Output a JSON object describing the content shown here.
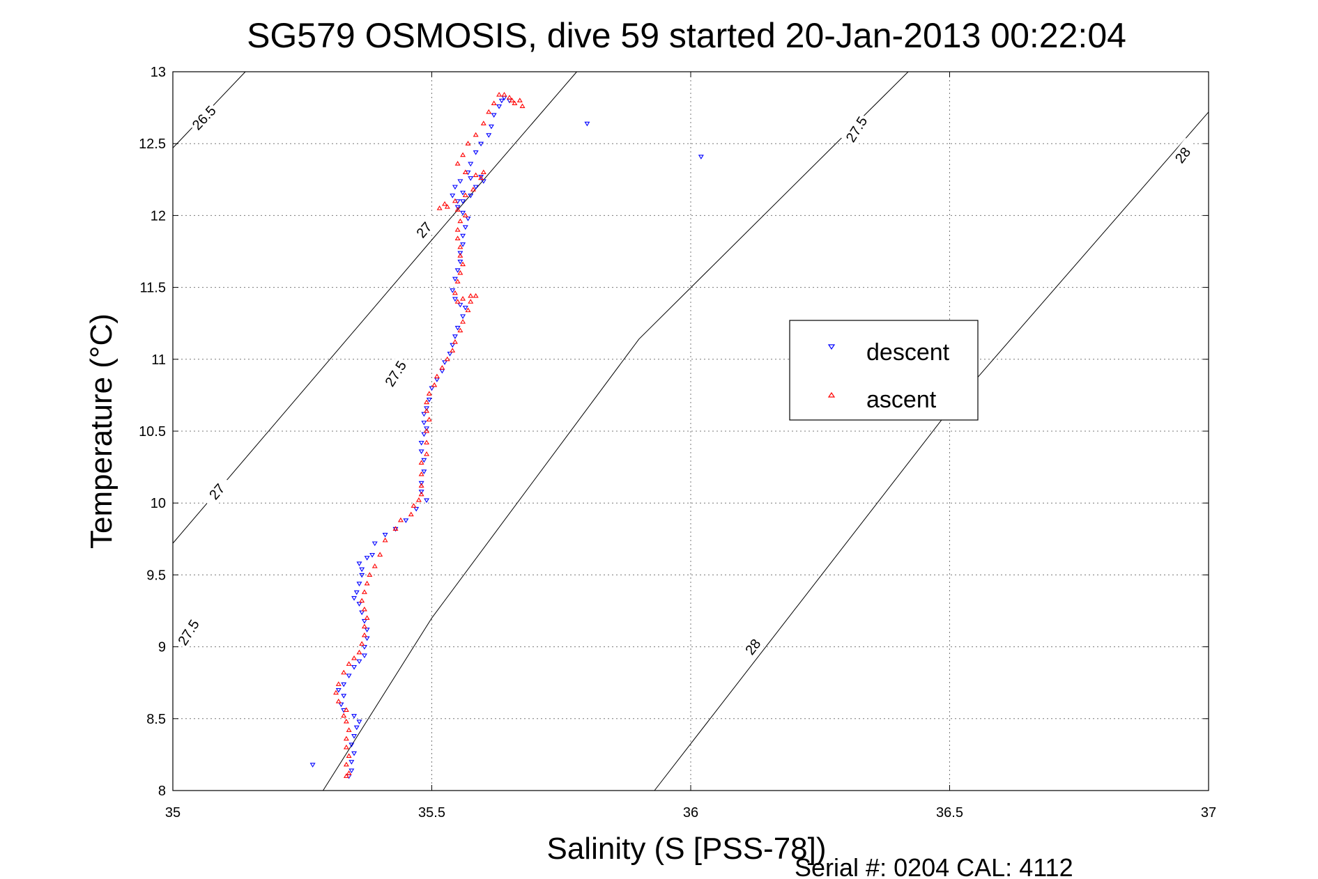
{
  "chart_data": {
    "type": "scatter",
    "title": "SG579 OSMOSIS, dive 59 started 20-Jan-2013 00:22:04",
    "xlabel": "Salinity (S [PSS-78])",
    "ylabel": "Temperature (°C)",
    "xlim": [
      35,
      37
    ],
    "ylim": [
      8,
      13
    ],
    "x_ticks": [
      "35",
      "35.5",
      "36",
      "36.5",
      "37"
    ],
    "y_ticks": [
      "8",
      "8.5",
      "9",
      "9.5",
      "10",
      "10.5",
      "11",
      "11.5",
      "12",
      "12.5",
      "13"
    ],
    "grid": true,
    "legend_position": "right",
    "footer": "Serial #: 0204  CAL: 4112",
    "density_contours": [
      {
        "level": 26.5,
        "label": "26.5",
        "points": [
          [
            35.0,
            12.47
          ],
          [
            35.14,
            13.0
          ]
        ],
        "label_positions": [
          [
            35.06,
            12.68
          ]
        ]
      },
      {
        "level": 27,
        "label": "27",
        "points": [
          [
            35.0,
            9.72
          ],
          [
            35.5,
            11.83
          ],
          [
            35.78,
            13.0
          ]
        ],
        "label_positions": [
          [
            35.085,
            10.08
          ],
          [
            35.485,
            11.9
          ]
        ]
      },
      {
        "level": 27.5,
        "label": "27.5",
        "points": [
          [
            35.29,
            8.0
          ],
          [
            35.5,
            9.2
          ],
          [
            35.9,
            11.14
          ],
          [
            36.42,
            13.0
          ]
        ],
        "label_positions": [
          [
            35.03,
            9.1
          ],
          [
            35.43,
            10.9
          ],
          [
            36.32,
            12.6
          ]
        ]
      },
      {
        "level": 28,
        "label": "28",
        "points": [
          [
            35.93,
            8.0
          ],
          [
            36.5,
            10.65
          ],
          [
            37.0,
            12.72
          ]
        ],
        "label_positions": [
          [
            36.12,
            9.0
          ],
          [
            36.95,
            12.42
          ]
        ]
      }
    ],
    "series": [
      {
        "name": "descent",
        "color": "#0000ff",
        "marker": "triangle-down",
        "points": [
          [
            35.27,
            8.18
          ],
          [
            35.34,
            8.1
          ],
          [
            35.345,
            8.14
          ],
          [
            35.345,
            8.2
          ],
          [
            35.35,
            8.26
          ],
          [
            35.345,
            8.32
          ],
          [
            35.35,
            8.38
          ],
          [
            35.355,
            8.44
          ],
          [
            35.36,
            8.48
          ],
          [
            35.35,
            8.52
          ],
          [
            35.33,
            8.56
          ],
          [
            35.325,
            8.6
          ],
          [
            35.33,
            8.66
          ],
          [
            35.32,
            8.7
          ],
          [
            35.33,
            8.74
          ],
          [
            35.34,
            8.8
          ],
          [
            35.35,
            8.86
          ],
          [
            35.36,
            8.9
          ],
          [
            35.37,
            8.94
          ],
          [
            35.37,
            9.0
          ],
          [
            35.375,
            9.06
          ],
          [
            35.375,
            9.12
          ],
          [
            35.37,
            9.18
          ],
          [
            35.365,
            9.24
          ],
          [
            35.36,
            9.3
          ],
          [
            35.35,
            9.34
          ],
          [
            35.355,
            9.38
          ],
          [
            35.36,
            9.44
          ],
          [
            35.365,
            9.5
          ],
          [
            35.365,
            9.54
          ],
          [
            35.36,
            9.58
          ],
          [
            35.375,
            9.62
          ],
          [
            35.385,
            9.64
          ],
          [
            35.39,
            9.72
          ],
          [
            35.41,
            9.78
          ],
          [
            35.43,
            9.82
          ],
          [
            35.45,
            9.88
          ],
          [
            35.47,
            9.96
          ],
          [
            35.49,
            10.02
          ],
          [
            35.48,
            10.08
          ],
          [
            35.48,
            10.14
          ],
          [
            35.485,
            10.22
          ],
          [
            35.485,
            10.3
          ],
          [
            35.48,
            10.36
          ],
          [
            35.48,
            10.42
          ],
          [
            35.485,
            10.48
          ],
          [
            35.49,
            10.52
          ],
          [
            35.485,
            10.56
          ],
          [
            35.485,
            10.62
          ],
          [
            35.49,
            10.66
          ],
          [
            35.495,
            10.72
          ],
          [
            35.5,
            10.8
          ],
          [
            35.51,
            10.86
          ],
          [
            35.52,
            10.92
          ],
          [
            35.525,
            10.98
          ],
          [
            35.535,
            11.04
          ],
          [
            35.54,
            11.1
          ],
          [
            35.545,
            11.16
          ],
          [
            35.55,
            11.22
          ],
          [
            35.56,
            11.3
          ],
          [
            35.565,
            11.36
          ],
          [
            35.555,
            11.38
          ],
          [
            35.545,
            11.42
          ],
          [
            35.54,
            11.48
          ],
          [
            35.545,
            11.56
          ],
          [
            35.55,
            11.62
          ],
          [
            35.555,
            11.68
          ],
          [
            35.555,
            11.74
          ],
          [
            35.56,
            11.8
          ],
          [
            35.56,
            11.86
          ],
          [
            35.565,
            11.92
          ],
          [
            35.57,
            11.98
          ],
          [
            35.56,
            12.02
          ],
          [
            35.55,
            12.06
          ],
          [
            35.56,
            12.1
          ],
          [
            35.575,
            12.14
          ],
          [
            35.585,
            12.2
          ],
          [
            35.6,
            12.24
          ],
          [
            35.595,
            12.27
          ],
          [
            35.575,
            12.26
          ],
          [
            35.555,
            12.24
          ],
          [
            35.545,
            12.2
          ],
          [
            35.54,
            12.14
          ],
          [
            35.55,
            12.1
          ],
          [
            35.56,
            12.16
          ],
          [
            35.57,
            12.3
          ],
          [
            35.575,
            12.36
          ],
          [
            35.585,
            12.44
          ],
          [
            35.595,
            12.5
          ],
          [
            35.61,
            12.56
          ],
          [
            35.615,
            12.62
          ],
          [
            35.62,
            12.7
          ],
          [
            35.63,
            12.76
          ],
          [
            35.635,
            12.8
          ],
          [
            35.64,
            12.82
          ],
          [
            35.65,
            12.8
          ],
          [
            35.8,
            12.64
          ],
          [
            36.02,
            12.41
          ]
        ]
      },
      {
        "name": "ascent",
        "color": "#ff0000",
        "marker": "triangle-up",
        "points": [
          [
            35.335,
            8.1
          ],
          [
            35.34,
            8.12
          ],
          [
            35.335,
            8.18
          ],
          [
            35.34,
            8.24
          ],
          [
            35.335,
            8.3
          ],
          [
            35.335,
            8.36
          ],
          [
            35.34,
            8.42
          ],
          [
            35.335,
            8.48
          ],
          [
            35.33,
            8.52
          ],
          [
            35.335,
            8.56
          ],
          [
            35.32,
            8.62
          ],
          [
            35.315,
            8.68
          ],
          [
            35.32,
            8.74
          ],
          [
            35.33,
            8.82
          ],
          [
            35.34,
            8.88
          ],
          [
            35.35,
            8.92
          ],
          [
            35.36,
            8.96
          ],
          [
            35.365,
            9.02
          ],
          [
            35.37,
            9.08
          ],
          [
            35.37,
            9.14
          ],
          [
            35.375,
            9.2
          ],
          [
            35.37,
            9.26
          ],
          [
            35.365,
            9.32
          ],
          [
            35.37,
            9.38
          ],
          [
            35.375,
            9.44
          ],
          [
            35.38,
            9.5
          ],
          [
            35.39,
            9.56
          ],
          [
            35.4,
            9.64
          ],
          [
            35.41,
            9.74
          ],
          [
            35.43,
            9.82
          ],
          [
            35.44,
            9.88
          ],
          [
            35.46,
            9.92
          ],
          [
            35.465,
            9.98
          ],
          [
            35.475,
            10.02
          ],
          [
            35.48,
            10.06
          ],
          [
            35.48,
            10.12
          ],
          [
            35.48,
            10.2
          ],
          [
            35.48,
            10.28
          ],
          [
            35.49,
            10.34
          ],
          [
            35.49,
            10.42
          ],
          [
            35.49,
            10.5
          ],
          [
            35.495,
            10.58
          ],
          [
            35.49,
            10.64
          ],
          [
            35.49,
            10.7
          ],
          [
            35.495,
            10.76
          ],
          [
            35.505,
            10.82
          ],
          [
            35.51,
            10.88
          ],
          [
            35.52,
            10.94
          ],
          [
            35.53,
            11.0
          ],
          [
            35.54,
            11.06
          ],
          [
            35.545,
            11.12
          ],
          [
            35.555,
            11.2
          ],
          [
            35.56,
            11.26
          ],
          [
            35.57,
            11.34
          ],
          [
            35.575,
            11.4
          ],
          [
            35.585,
            11.44
          ],
          [
            35.575,
            11.44
          ],
          [
            35.56,
            11.42
          ],
          [
            35.55,
            11.4
          ],
          [
            35.545,
            11.46
          ],
          [
            35.55,
            11.54
          ],
          [
            35.555,
            11.6
          ],
          [
            35.56,
            11.66
          ],
          [
            35.555,
            11.72
          ],
          [
            35.555,
            11.78
          ],
          [
            35.55,
            11.84
          ],
          [
            35.55,
            11.9
          ],
          [
            35.555,
            11.96
          ],
          [
            35.565,
            12.0
          ],
          [
            35.55,
            12.04
          ],
          [
            35.53,
            12.06
          ],
          [
            35.515,
            12.05
          ],
          [
            35.525,
            12.08
          ],
          [
            35.545,
            12.1
          ],
          [
            35.565,
            12.14
          ],
          [
            35.58,
            12.18
          ],
          [
            35.595,
            12.26
          ],
          [
            35.6,
            12.3
          ],
          [
            35.585,
            12.28
          ],
          [
            35.565,
            12.3
          ],
          [
            35.55,
            12.36
          ],
          [
            35.56,
            12.42
          ],
          [
            35.57,
            12.5
          ],
          [
            35.585,
            12.56
          ],
          [
            35.6,
            12.64
          ],
          [
            35.61,
            12.72
          ],
          [
            35.62,
            12.78
          ],
          [
            35.63,
            12.84
          ],
          [
            35.64,
            12.84
          ],
          [
            35.65,
            12.82
          ],
          [
            35.655,
            12.8
          ],
          [
            35.66,
            12.78
          ],
          [
            35.67,
            12.8
          ],
          [
            35.675,
            12.76
          ]
        ]
      }
    ]
  }
}
